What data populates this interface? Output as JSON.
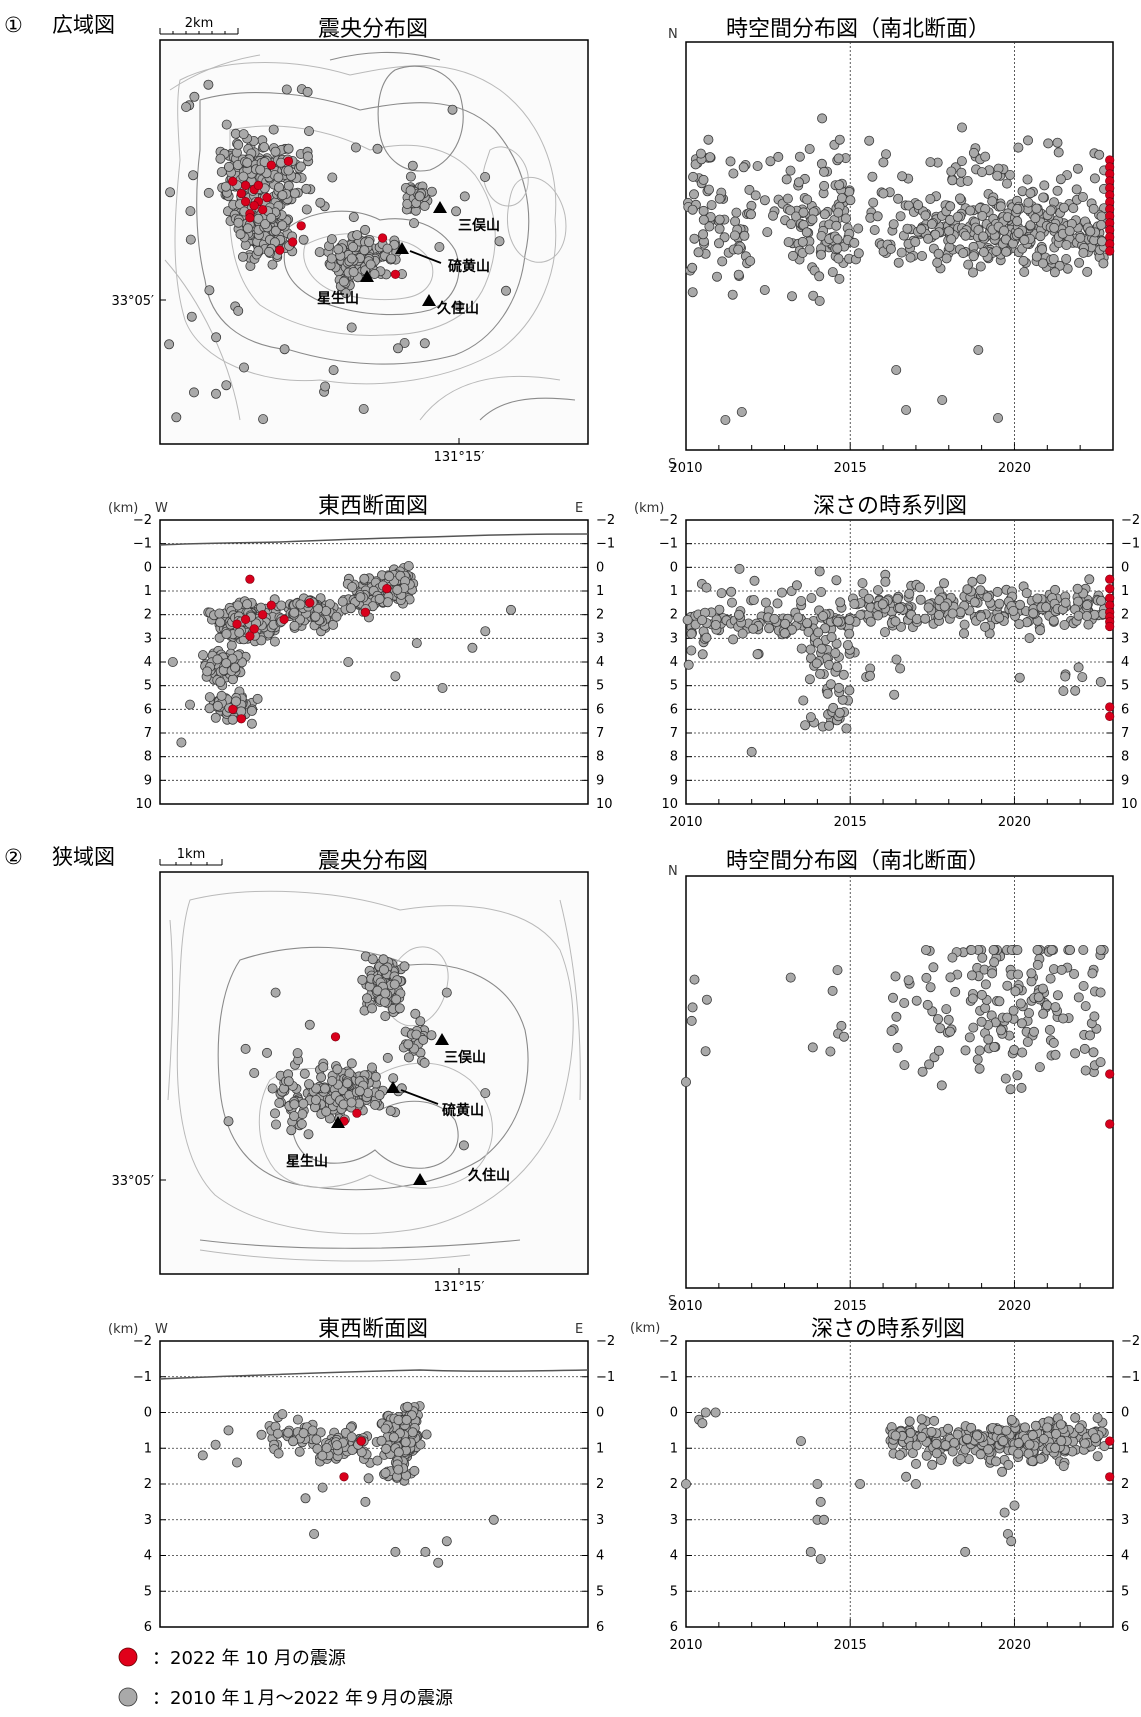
{
  "sections": [
    {
      "number": "①",
      "title": "広域図"
    },
    {
      "number": "②",
      "title": "狭域図"
    }
  ],
  "titles": {
    "epicenter": "震央分布図",
    "spacetime": "時空間分布図（南北断面）",
    "ew_section": "東西断面図",
    "depth_time": "深さの時系列図"
  },
  "scalebars": {
    "wide": "2km",
    "narrow": "1km"
  },
  "map": {
    "lat_label": "33°05′",
    "lon_label": "131°15′",
    "volcanoes": [
      "三俣山",
      "硫黄山",
      "星生山",
      "久住山"
    ]
  },
  "axis_text": {
    "km": "(km)",
    "W": "W",
    "E": "E",
    "N": "N",
    "S": "S"
  },
  "legend": {
    "red": "：2022 年 10 月の震源",
    "gray": "：2010 年１月～2022 年９月の震源"
  },
  "colors": {
    "recent": "#d8001c",
    "past": "#a9a9a9"
  },
  "chart_data": [
    {
      "type": "scatter",
      "title": "震央分布図",
      "region": "広域図",
      "ticks": {
        "x": [
          "131°15′"
        ],
        "y": [
          "33°05′"
        ]
      },
      "series": [
        {
          "name": "2010 年１月～2022 年９月の震源",
          "cluster_centers": [
            [
              0.21,
              0.35
            ],
            [
              0.25,
              0.42
            ],
            [
              0.46,
              0.54
            ],
            [
              0.6,
              0.39
            ]
          ]
        },
        {
          "name": "2022 年 10 月の震源",
          "count_approx": 25
        }
      ]
    },
    {
      "type": "scatter",
      "title": "時空間分布図（南北断面）",
      "region": "広域図",
      "xlim": [
        2010,
        2023
      ],
      "xticks": [
        "2010",
        "2015",
        "2020"
      ],
      "yaxis": [
        "N",
        "S"
      ],
      "series": [
        {
          "name": "2010 年１月～2022 年９月の震源",
          "density_by_year": {
            "2010": 25,
            "2011": 40,
            "2012": 10,
            "2013": 45,
            "2014": 70,
            "2015": 15,
            "2016": 30,
            "2017": 45,
            "2018": 60,
            "2019": 80,
            "2020": 70,
            "2021": 55,
            "2022": 60
          }
        },
        {
          "name": "2022 年 10 月の震源",
          "x": 2022.8
        }
      ]
    },
    {
      "type": "scatter",
      "title": "東西断面図",
      "region": "広域図",
      "ylabel": "(km)",
      "ylim": [
        10,
        -2
      ],
      "yticks": [
        "-2",
        "-1",
        "0",
        "1",
        "2",
        "3",
        "4",
        "5",
        "6",
        "7",
        "8",
        "9",
        "10"
      ],
      "xaxis": [
        "W",
        "E"
      ],
      "series": [
        {
          "name": "2010 年１月～2022 年９月の震源",
          "depth_range_km": [
            -1,
            8
          ]
        },
        {
          "name": "2022 年 10 月の震源",
          "depth_range_km": [
            0.5,
            6.5
          ]
        }
      ]
    },
    {
      "type": "scatter",
      "title": "深さの時系列図",
      "region": "広域図",
      "ylabel": "(km)",
      "xlim": [
        2010,
        2023
      ],
      "ylim": [
        10,
        -2
      ],
      "xticks": [
        "2010",
        "2015",
        "2020"
      ],
      "yticks": [
        "-2",
        "-1",
        "0",
        "1",
        "2",
        "3",
        "4",
        "5",
        "6",
        "7",
        "8",
        "9",
        "10"
      ],
      "series": [
        {
          "name": "2010 年１月～2022 年９月の震源",
          "depth_range_km": [
            -1,
            8
          ]
        },
        {
          "name": "2022 年 10 月の震源",
          "x": 2022.8,
          "depth_range_km": [
            0.5,
            6.5
          ]
        }
      ]
    },
    {
      "type": "scatter",
      "title": "震央分布図",
      "region": "狭域図",
      "ticks": {
        "x": [
          "131°15′"
        ],
        "y": [
          "33°05′"
        ]
      },
      "series": [
        {
          "name": "2010 年１月～2022 年９月の震源",
          "cluster_centers": [
            [
              0.53,
              0.28
            ],
            [
              0.45,
              0.55
            ]
          ]
        },
        {
          "name": "2022 年 10 月の震源",
          "count_approx": 3
        }
      ]
    },
    {
      "type": "scatter",
      "title": "時空間分布図（南北断面）",
      "region": "狭域図",
      "xlim": [
        2010,
        2023
      ],
      "xticks": [
        "2010",
        "2015",
        "2020"
      ],
      "yaxis": [
        "N",
        "S"
      ],
      "series": [
        {
          "name": "2010 年１月～2022 年９月の震源",
          "density_by_year": {
            "2010": 5,
            "2013": 2,
            "2014": 6,
            "2016": 10,
            "2017": 18,
            "2018": 25,
            "2019": 45,
            "2020": 40,
            "2021": 25,
            "2022": 30
          }
        },
        {
          "name": "2022 年 10 月の震源",
          "x": 2022.8
        }
      ]
    },
    {
      "type": "scatter",
      "title": "東西断面図",
      "region": "狭域図",
      "ylabel": "(km)",
      "ylim": [
        6,
        -2
      ],
      "yticks": [
        "-2",
        "-1",
        "0",
        "1",
        "2",
        "3",
        "4",
        "5",
        "6"
      ],
      "xaxis": [
        "W",
        "E"
      ],
      "series": [
        {
          "name": "2010 年１月～2022 年９月の震源",
          "depth_range_km": [
            -1.2,
            4.2
          ]
        },
        {
          "name": "2022 年 10 月の震源",
          "depth_range_km": [
            0.8,
            1.8
          ]
        }
      ]
    },
    {
      "type": "scatter",
      "title": "深さの時系列図",
      "region": "狭域図",
      "ylabel": "(km)",
      "xlim": [
        2010,
        2023
      ],
      "ylim": [
        6,
        -2
      ],
      "xticks": [
        "2010",
        "2015",
        "2020"
      ],
      "yticks": [
        "-2",
        "-1",
        "0",
        "1",
        "2",
        "3",
        "4",
        "5",
        "6"
      ],
      "series": [
        {
          "name": "2010 年１月～2022 年９月の震源",
          "depth_range_km": [
            -1.2,
            4.2
          ]
        },
        {
          "name": "2022 年 10 月の震源",
          "x": 2022.8,
          "depth_range_km": [
            0.8,
            1.8
          ]
        }
      ]
    }
  ]
}
